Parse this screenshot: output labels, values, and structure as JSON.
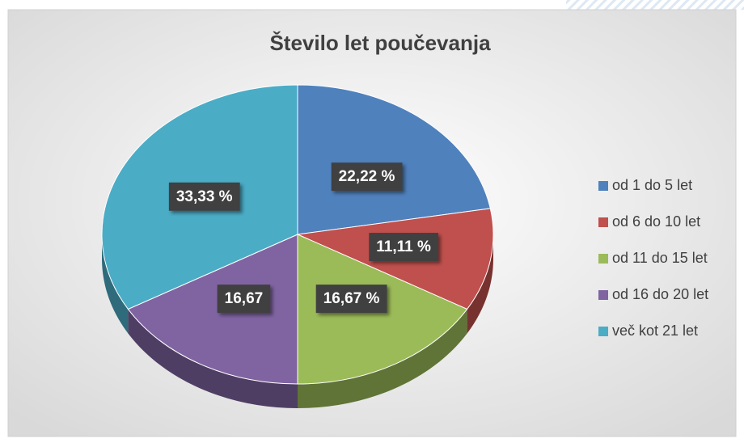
{
  "chart_data": {
    "type": "pie",
    "title": "Število let poučevanja",
    "categories": [
      "od 1 do 5 let",
      "od 6 do 10 let",
      "od 11 do 15 let",
      "od 16 do 20 let",
      "več kot 21 let"
    ],
    "values": [
      22.22,
      11.11,
      16.67,
      16.67,
      33.33
    ],
    "value_labels": [
      "22,22 %",
      "11,11 %",
      "16,67 %",
      "16,67",
      "33,33 %"
    ],
    "colors": [
      "#4f81bd",
      "#c0504d",
      "#9bbb59",
      "#8064a2",
      "#4bacc6"
    ],
    "legend": "right"
  }
}
